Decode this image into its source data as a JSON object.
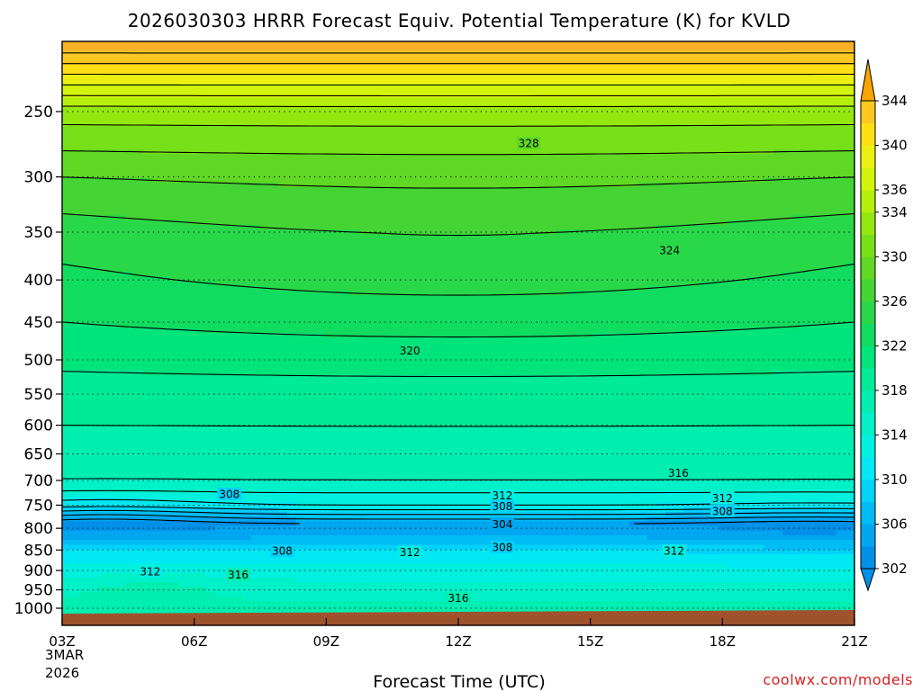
{
  "chart_data": {
    "type": "heatmap",
    "title": "2026030303 HRRR Forecast Equiv. Potential Temperature (K) for KVLD",
    "xlabel": "Forecast Time (UTC)",
    "ylabel": "",
    "x_ticks": [
      "03Z",
      "06Z",
      "09Z",
      "12Z",
      "15Z",
      "18Z",
      "21Z"
    ],
    "x_tick_hours": [
      3,
      6,
      9,
      12,
      15,
      18,
      21
    ],
    "x_date_lines": [
      "3MAR",
      "2026"
    ],
    "y_ticks": [
      250,
      300,
      350,
      400,
      450,
      500,
      550,
      600,
      650,
      700,
      750,
      800,
      850,
      900,
      950,
      1000
    ],
    "y_axis": "pressure (hPa), log scale, inverted",
    "xlim": [
      3,
      21
    ],
    "ylim": [
      1013,
      200
    ],
    "grid": true,
    "colorbar": {
      "orientation": "vertical",
      "placement": "right",
      "ticks": [
        302,
        306,
        310,
        314,
        318,
        322,
        326,
        330,
        334,
        336,
        340,
        344
      ],
      "levels": [
        302,
        304,
        306,
        308,
        310,
        312,
        314,
        316,
        318,
        320,
        322,
        324,
        326,
        328,
        330,
        332,
        334,
        336,
        338,
        340,
        342,
        344
      ],
      "colors": [
        "#0090e8",
        "#00a6f0",
        "#00bcf4",
        "#00d2f8",
        "#00e8f4",
        "#00f0e0",
        "#00f0c8",
        "#00eeb0",
        "#00ea98",
        "#00e47c",
        "#10dc60",
        "#28d848",
        "#44d434",
        "#60d824",
        "#78e018",
        "#94e810",
        "#b4f00c",
        "#d2f40c",
        "#ecf010",
        "#fce014",
        "#fcc820",
        "#f8b028"
      ]
    },
    "contour_labels": [
      {
        "value": 328,
        "x_hour": 13.6,
        "pressure": 273
      },
      {
        "value": 324,
        "x_hour": 16.8,
        "pressure": 368
      },
      {
        "value": 320,
        "x_hour": 10.9,
        "pressure": 487
      },
      {
        "value": 316,
        "x_hour": 17.0,
        "pressure": 685
      },
      {
        "value": 312,
        "x_hour": 13.0,
        "pressure": 730
      },
      {
        "value": 308,
        "x_hour": 13.0,
        "pressure": 752
      },
      {
        "value": 304,
        "x_hour": 13.0,
        "pressure": 791
      },
      {
        "value": 312,
        "x_hour": 18.0,
        "pressure": 735
      },
      {
        "value": 308,
        "x_hour": 18.0,
        "pressure": 762
      },
      {
        "value": 308,
        "x_hour": 6.8,
        "pressure": 727
      },
      {
        "value": 308,
        "x_hour": 8.0,
        "pressure": 852
      },
      {
        "value": 312,
        "x_hour": 10.9,
        "pressure": 855
      },
      {
        "value": 308,
        "x_hour": 13.0,
        "pressure": 843
      },
      {
        "value": 312,
        "x_hour": 16.9,
        "pressure": 852
      },
      {
        "value": 312,
        "x_hour": 5.0,
        "pressure": 902
      },
      {
        "value": 316,
        "x_hour": 7.0,
        "pressure": 910
      },
      {
        "value": 316,
        "x_hour": 12.0,
        "pressure": 972
      }
    ],
    "ground": "terrain band below ~1000 hPa",
    "credit": "coolwx.com/models"
  }
}
